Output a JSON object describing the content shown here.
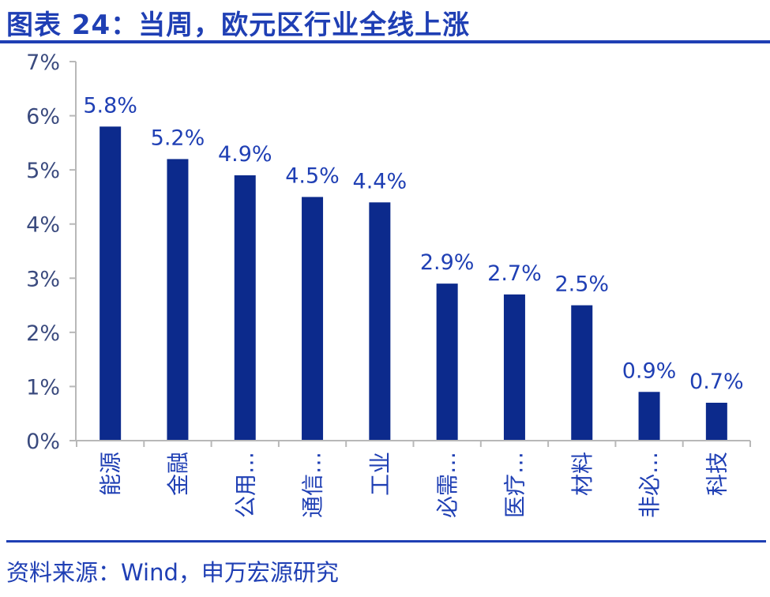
{
  "header": {
    "title": "图表 24：当周，欧元区行业全线上涨"
  },
  "footer": {
    "source": "资料来源：Wind，申万宏源研究"
  },
  "colors": {
    "bar": "#0c2a8c",
    "text": "#1f3fb4",
    "axis": "#b8b8b8"
  },
  "chart_data": {
    "type": "bar",
    "title": "",
    "xlabel": "",
    "ylabel": "",
    "categories": [
      "能源",
      "金融",
      "公用…",
      "通信…",
      "工业",
      "必需…",
      "医疗…",
      "材料",
      "非必…",
      "科技"
    ],
    "series": [
      {
        "values": [
          5.8,
          5.2,
          4.9,
          4.5,
          4.4,
          2.9,
          2.7,
          2.5,
          0.9,
          0.7
        ]
      }
    ],
    "data_labels": [
      "5.8%",
      "5.2%",
      "4.9%",
      "4.5%",
      "4.4%",
      "2.9%",
      "2.7%",
      "2.5%",
      "0.9%",
      "0.7%"
    ],
    "ylim": [
      0,
      7
    ],
    "yticks": [
      0,
      1,
      2,
      3,
      4,
      5,
      6,
      7
    ],
    "ytick_labels": [
      "0%",
      "1%",
      "2%",
      "3%",
      "4%",
      "5%",
      "6%",
      "7%"
    ],
    "grid": false,
    "legend": "none"
  }
}
